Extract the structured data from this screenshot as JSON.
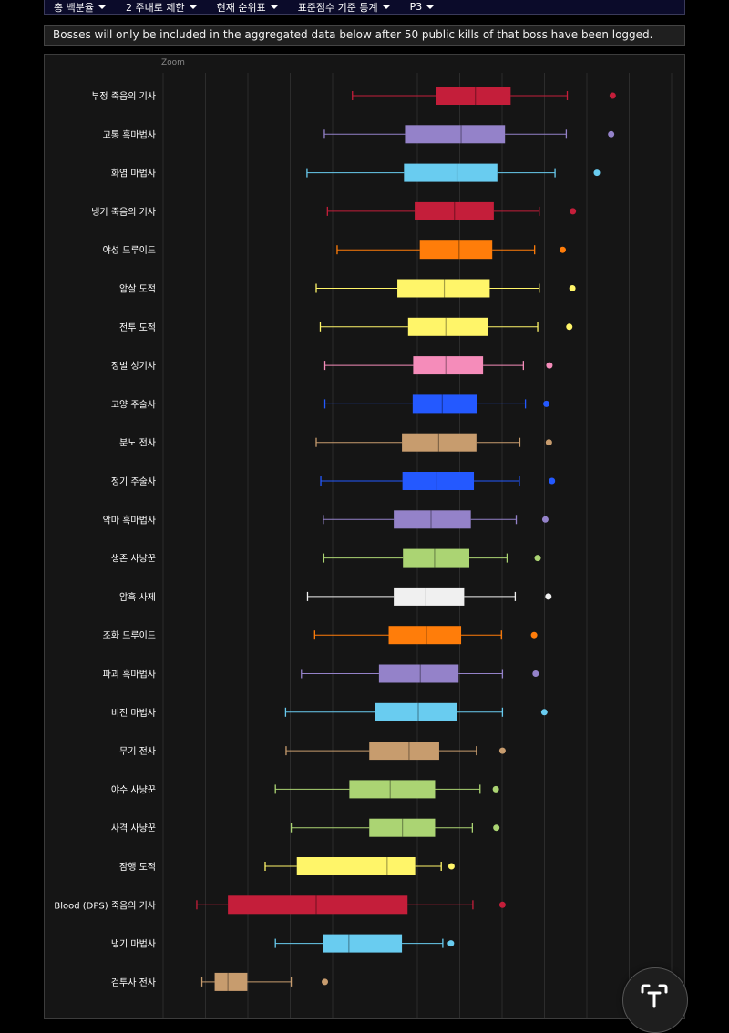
{
  "toolbar": {
    "items": [
      "총 백분율",
      "2 주내로 제한",
      "현재 순위표",
      "표준점수 기준 통계",
      "P3"
    ]
  },
  "notice": "Bosses will only be included in the aggregated data below after 50 public kills of that boss have been logged.",
  "zoom_label": "Zoom",
  "chart_data": {
    "type": "boxplot",
    "orientation": "horizontal",
    "xlim": [
      0,
      1000
    ],
    "grid": true,
    "categories": [
      "부정 죽음의 기사",
      "고통 흑마법사",
      "화염 마법사",
      "냉기 죽음의 기사",
      "야성 드루이드",
      "암살 도적",
      "전투 도적",
      "징벌 성기사",
      "고양 주술사",
      "분노 전사",
      "정기 주술사",
      "악마 흑마법사",
      "생존 사냥꾼",
      "암흑 사제",
      "조화 드루이드",
      "파괴 흑마법사",
      "비전 마법사",
      "무기 전사",
      "야수 사냥꾼",
      "사격 사냥꾼",
      "잠행 도적",
      "Blood (DPS) 죽음의 기사",
      "냉기 마법사",
      "검투사 전사"
    ],
    "series": [
      {
        "label": "부정 죽음의 기사",
        "color": "#c41e3a",
        "whisker_low": 371,
        "q1": 534,
        "median": 612,
        "q3": 681,
        "whisker_high": 792,
        "outlier": 881
      },
      {
        "label": "고통 흑마법사",
        "color": "#9482c9",
        "whisker_low": 316,
        "q1": 474,
        "median": 584,
        "q3": 670,
        "whisker_high": 790,
        "outlier": 878
      },
      {
        "label": "화염 마법사",
        "color": "#69ccf0",
        "whisker_low": 282,
        "q1": 472,
        "median": 576,
        "q3": 655,
        "whisker_high": 768,
        "outlier": 850
      },
      {
        "label": "냉기 죽음의 기사",
        "color": "#c41e3a",
        "whisker_low": 322,
        "q1": 493,
        "median": 571,
        "q3": 648,
        "whisker_high": 737,
        "outlier": 803
      },
      {
        "label": "야성 드루이드",
        "color": "#ff7d0a",
        "whisker_low": 341,
        "q1": 503,
        "median": 580,
        "q3": 645,
        "whisker_high": 728,
        "outlier": 783
      },
      {
        "label": "암살 도적",
        "color": "#fff569",
        "whisker_low": 300,
        "q1": 459,
        "median": 551,
        "q3": 640,
        "whisker_high": 737,
        "outlier": 802
      },
      {
        "label": "전투 도적",
        "color": "#fff569",
        "whisker_low": 308,
        "q1": 480,
        "median": 554,
        "q3": 637,
        "whisker_high": 734,
        "outlier": 796
      },
      {
        "label": "징벌 성기사",
        "color": "#f58cba",
        "whisker_low": 317,
        "q1": 490,
        "median": 554,
        "q3": 627,
        "whisker_high": 706,
        "outlier": 757
      },
      {
        "label": "고양 주술사",
        "color": "#2459ff",
        "whisker_low": 317,
        "q1": 489,
        "median": 547,
        "q3": 615,
        "whisker_high": 710,
        "outlier": 751
      },
      {
        "label": "분노 전사",
        "color": "#c79c6e",
        "whisker_low": 300,
        "q1": 468,
        "median": 540,
        "q3": 614,
        "whisker_high": 699,
        "outlier": 756
      },
      {
        "label": "정기 주술사",
        "color": "#2459ff",
        "whisker_low": 309,
        "q1": 469,
        "median": 535,
        "q3": 609,
        "whisker_high": 698,
        "outlier": 762
      },
      {
        "label": "악마 흑마법사",
        "color": "#9482c9",
        "whisker_low": 314,
        "q1": 452,
        "median": 525,
        "q3": 603,
        "whisker_high": 692,
        "outlier": 749
      },
      {
        "label": "생존 사냥꾼",
        "color": "#abd473",
        "whisker_low": 315,
        "q1": 470,
        "median": 532,
        "q3": 600,
        "whisker_high": 674,
        "outlier": 734
      },
      {
        "label": "암흑 사제",
        "color": "#f0f0f0",
        "whisker_low": 283,
        "q1": 452,
        "median": 515,
        "q3": 590,
        "whisker_high": 690,
        "outlier": 755
      },
      {
        "label": "조화 드루이드",
        "color": "#ff7d0a",
        "whisker_low": 297,
        "q1": 442,
        "median": 516,
        "q3": 584,
        "whisker_high": 663,
        "outlier": 727
      },
      {
        "label": "파괴 흑마법사",
        "color": "#9482c9",
        "whisker_low": 271,
        "q1": 423,
        "median": 504,
        "q3": 579,
        "whisker_high": 665,
        "outlier": 730
      },
      {
        "label": "비전 마법사",
        "color": "#69ccf0",
        "whisker_low": 240,
        "q1": 416,
        "median": 500,
        "q3": 575,
        "whisker_high": 665,
        "outlier": 747
      },
      {
        "label": "무기 전사",
        "color": "#c79c6e",
        "whisker_low": 241,
        "q1": 404,
        "median": 482,
        "q3": 541,
        "whisker_high": 614,
        "outlier": 665
      },
      {
        "label": "야수 사냥꾼",
        "color": "#abd473",
        "whisker_low": 220,
        "q1": 365,
        "median": 445,
        "q3": 533,
        "whisker_high": 621,
        "outlier": 652
      },
      {
        "label": "사격 사냥꾼",
        "color": "#abd473",
        "whisker_low": 251,
        "q1": 404,
        "median": 469,
        "q3": 533,
        "whisker_high": 606,
        "outlier": 653
      },
      {
        "label": "잠행 도적",
        "color": "#fff569",
        "whisker_low": 200,
        "q1": 262,
        "median": 439,
        "q3": 494,
        "whisker_high": 545,
        "outlier": 565
      },
      {
        "label": "Blood (DPS) 죽음의 기사",
        "color": "#c41e3a",
        "whisker_low": 66,
        "q1": 127,
        "median": 300,
        "q3": 479,
        "whisker_high": 607,
        "outlier": 665
      },
      {
        "label": "냉기 마법사",
        "color": "#69ccf0",
        "whisker_low": 220,
        "q1": 313,
        "median": 364,
        "q3": 468,
        "whisker_high": 548,
        "outlier": 564
      },
      {
        "label": "검투사 전사",
        "color": "#c79c6e",
        "whisker_low": 76,
        "q1": 101,
        "median": 127,
        "q3": 165,
        "whisker_high": 251,
        "outlier": 317
      }
    ]
  }
}
